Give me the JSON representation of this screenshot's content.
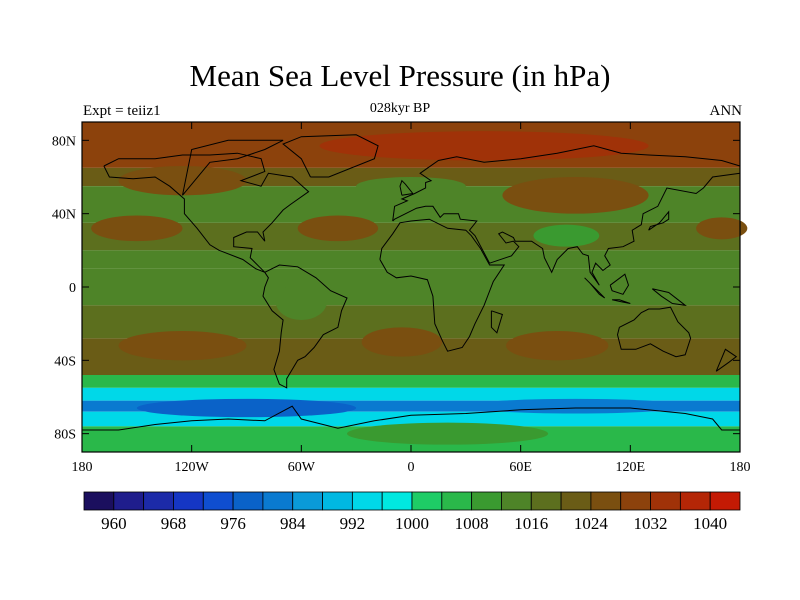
{
  "title": "Mean Sea Level Pressure (in hPa)",
  "subtitle": "028kyr BP",
  "left_label": "Expt = teiiz1",
  "right_label": "ANN",
  "chart_data": {
    "type": "heatmap",
    "title": "Mean Sea Level Pressure (in hPa)",
    "subtitle": "028kyr BP",
    "xlabel": "",
    "ylabel": "",
    "x_ticks": [
      "180",
      "120W",
      "60W",
      "0",
      "60E",
      "120E",
      "180"
    ],
    "x_tick_values": [
      -180,
      -120,
      -60,
      0,
      60,
      120,
      180
    ],
    "y_ticks": [
      "80N",
      "40N",
      "0",
      "40S",
      "80S"
    ],
    "y_tick_values": [
      80,
      40,
      0,
      -40,
      -80
    ],
    "xlim": [
      -180,
      180
    ],
    "ylim": [
      -90,
      90
    ],
    "colorbar_labels": [
      "960",
      "968",
      "976",
      "984",
      "992",
      "1000",
      "1008",
      "1016",
      "1024",
      "1032",
      "1040"
    ],
    "colorbar_levels": [
      956,
      960,
      964,
      968,
      972,
      976,
      980,
      984,
      988,
      992,
      996,
      1000,
      1004,
      1008,
      1012,
      1016,
      1020,
      1024,
      1028,
      1032,
      1036,
      1040,
      1044
    ],
    "colorbar_colors": [
      "#1b0f5e",
      "#1f1d8c",
      "#1c2aa8",
      "#1536c4",
      "#0f4ed0",
      "#0a62c8",
      "#0a7ad0",
      "#0a9ad8",
      "#00b8e2",
      "#00d8e8",
      "#00e8e0",
      "#1ecc66",
      "#2ab84a",
      "#3a9a30",
      "#4e8428",
      "#5c6f1e",
      "#6a5c16",
      "#7a4f10",
      "#8c420c",
      "#a03208",
      "#b42606",
      "#c41a04"
    ],
    "zones": [
      {
        "lat_min": 65,
        "lat_max": 90,
        "value": 1030
      },
      {
        "lat_min": 55,
        "lat_max": 65,
        "value": 1022
      },
      {
        "lat_min": 35,
        "lat_max": 55,
        "value": 1015
      },
      {
        "lat_min": 20,
        "lat_max": 35,
        "value": 1018
      },
      {
        "lat_min": 10,
        "lat_max": 20,
        "value": 1014
      },
      {
        "lat_min": -10,
        "lat_max": 10,
        "value": 1012
      },
      {
        "lat_min": -28,
        "lat_max": -10,
        "value": 1017
      },
      {
        "lat_min": -48,
        "lat_max": -28,
        "value": 1022
      },
      {
        "lat_min": -55,
        "lat_max": -48,
        "value": 1006
      },
      {
        "lat_min": -62,
        "lat_max": -55,
        "value": 994
      },
      {
        "lat_min": -68,
        "lat_max": -62,
        "value": 982
      },
      {
        "lat_min": -76,
        "lat_max": -68,
        "value": 994
      },
      {
        "lat_min": -90,
        "lat_max": -76,
        "value": 1006
      }
    ],
    "highs": [
      {
        "lon": -150,
        "lat": 32,
        "dlon": 25,
        "dlat": 7,
        "value": 1024
      },
      {
        "lon": -40,
        "lat": 32,
        "dlon": 22,
        "dlat": 7,
        "value": 1024
      },
      {
        "lon": 170,
        "lat": 32,
        "dlon": 14,
        "dlat": 6,
        "value": 1024
      },
      {
        "lon": -125,
        "lat": -32,
        "dlon": 35,
        "dlat": 8,
        "value": 1026
      },
      {
        "lon": -5,
        "lat": -30,
        "dlon": 22,
        "dlat": 8,
        "value": 1026
      },
      {
        "lon": 80,
        "lat": -32,
        "dlon": 28,
        "dlat": 8,
        "value": 1026
      },
      {
        "lon": 40,
        "lat": 77,
        "dlon": 90,
        "dlat": 8,
        "value": 1032
      },
      {
        "lon": -125,
        "lat": 58,
        "dlon": 35,
        "dlat": 8,
        "value": 1026
      },
      {
        "lon": 90,
        "lat": 50,
        "dlon": 40,
        "dlat": 10,
        "value": 1024
      }
    ],
    "lows": [
      {
        "lon": 85,
        "lat": 28,
        "dlon": 18,
        "dlat": 6,
        "value": 1008
      },
      {
        "lon": 0,
        "lat": 55,
        "dlon": 30,
        "dlat": 5,
        "value": 1012
      },
      {
        "lon": -60,
        "lat": -8,
        "dlon": 14,
        "dlat": 10,
        "value": 1012
      },
      {
        "lon": -90,
        "lat": -66,
        "dlon": 60,
        "dlat": 5,
        "value": 978
      },
      {
        "lon": 90,
        "lat": -65,
        "dlon": 60,
        "dlat": 4,
        "value": 980
      },
      {
        "lon": 20,
        "lat": -80,
        "dlon": 55,
        "dlat": 6,
        "value": 1008
      }
    ]
  }
}
